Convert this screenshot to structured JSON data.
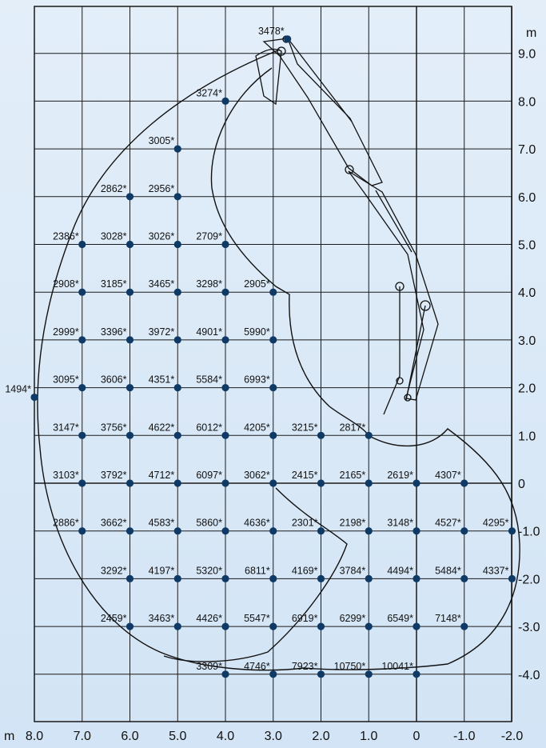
{
  "axes": {
    "x_unit": "m",
    "y_unit": "m",
    "x_ticks": [
      {
        "v": 8,
        "label": "8.0"
      },
      {
        "v": 7,
        "label": "7.0"
      },
      {
        "v": 6,
        "label": "6.0"
      },
      {
        "v": 5,
        "label": "5.0"
      },
      {
        "v": 4,
        "label": "4.0"
      },
      {
        "v": 3,
        "label": "3.0"
      },
      {
        "v": 2,
        "label": "2.0"
      },
      {
        "v": 1,
        "label": "1.0"
      },
      {
        "v": 0,
        "label": "0"
      },
      {
        "v": -1,
        "label": "-1.0"
      },
      {
        "v": -2,
        "label": "-2.0"
      }
    ],
    "y_ticks": [
      {
        "v": 9,
        "label": "9.0"
      },
      {
        "v": 8,
        "label": "8.0"
      },
      {
        "v": 7,
        "label": "7.0"
      },
      {
        "v": 6,
        "label": "6.0"
      },
      {
        "v": 5,
        "label": "5.0"
      },
      {
        "v": 4,
        "label": "4.0"
      },
      {
        "v": 3,
        "label": "3.0"
      },
      {
        "v": 2,
        "label": "2.0"
      },
      {
        "v": 1,
        "label": "1.0"
      },
      {
        "v": 0,
        "label": "0"
      },
      {
        "v": -1,
        "label": "-1.0"
      },
      {
        "v": -2,
        "label": "-2.0"
      },
      {
        "v": -3,
        "label": "-3.0"
      },
      {
        "v": -4,
        "label": "-4.0"
      }
    ]
  },
  "load_points": [
    {
      "x": 2.7,
      "y": 9.3,
      "label": "3478*"
    },
    {
      "x": 4,
      "y": 8,
      "label": "3274*"
    },
    {
      "x": 5,
      "y": 7,
      "label": "3005*"
    },
    {
      "x": 6,
      "y": 6,
      "label": "2862*"
    },
    {
      "x": 5,
      "y": 6,
      "label": "2956*"
    },
    {
      "x": 7,
      "y": 5,
      "label": "2386*"
    },
    {
      "x": 6,
      "y": 5,
      "label": "3028*"
    },
    {
      "x": 5,
      "y": 5,
      "label": "3026*"
    },
    {
      "x": 4,
      "y": 5,
      "label": "2709*"
    },
    {
      "x": 7,
      "y": 4,
      "label": "2908*"
    },
    {
      "x": 6,
      "y": 4,
      "label": "3185*"
    },
    {
      "x": 5,
      "y": 4,
      "label": "3465*"
    },
    {
      "x": 4,
      "y": 4,
      "label": "3298*"
    },
    {
      "x": 3,
      "y": 4,
      "label": "2905*"
    },
    {
      "x": 7,
      "y": 3,
      "label": "2999*"
    },
    {
      "x": 6,
      "y": 3,
      "label": "3396*"
    },
    {
      "x": 5,
      "y": 3,
      "label": "3972*"
    },
    {
      "x": 4,
      "y": 3,
      "label": "4901*"
    },
    {
      "x": 3,
      "y": 3,
      "label": "5990*"
    },
    {
      "x": 8,
      "y": 1.8,
      "label": "1494*"
    },
    {
      "x": 7,
      "y": 2,
      "label": "3095*"
    },
    {
      "x": 6,
      "y": 2,
      "label": "3606*"
    },
    {
      "x": 5,
      "y": 2,
      "label": "4351*"
    },
    {
      "x": 4,
      "y": 2,
      "label": "5584*"
    },
    {
      "x": 3,
      "y": 2,
      "label": "6993*"
    },
    {
      "x": 7,
      "y": 1,
      "label": "3147*"
    },
    {
      "x": 6,
      "y": 1,
      "label": "3756*"
    },
    {
      "x": 5,
      "y": 1,
      "label": "4622*"
    },
    {
      "x": 4,
      "y": 1,
      "label": "6012*"
    },
    {
      "x": 3,
      "y": 1,
      "label": "4205*"
    },
    {
      "x": 2,
      "y": 1,
      "label": "3215*"
    },
    {
      "x": 1,
      "y": 1,
      "label": "2817*"
    },
    {
      "x": 7,
      "y": 0,
      "label": "3103*"
    },
    {
      "x": 6,
      "y": 0,
      "label": "3792*"
    },
    {
      "x": 5,
      "y": 0,
      "label": "4712*"
    },
    {
      "x": 4,
      "y": 0,
      "label": "6097*"
    },
    {
      "x": 3,
      "y": 0,
      "label": "3062*"
    },
    {
      "x": 2,
      "y": 0,
      "label": "2415*"
    },
    {
      "x": 1,
      "y": 0,
      "label": "2165*"
    },
    {
      "x": 0,
      "y": 0,
      "label": "2619*"
    },
    {
      "x": -1,
      "y": 0,
      "label": "4307*"
    },
    {
      "x": 7,
      "y": -1,
      "label": "2886*"
    },
    {
      "x": 6,
      "y": -1,
      "label": "3662*"
    },
    {
      "x": 5,
      "y": -1,
      "label": "4583*"
    },
    {
      "x": 4,
      "y": -1,
      "label": "5860*"
    },
    {
      "x": 3,
      "y": -1,
      "label": "4636*"
    },
    {
      "x": 2,
      "y": -1,
      "label": "2301*"
    },
    {
      "x": 1,
      "y": -1,
      "label": "2198*"
    },
    {
      "x": 0,
      "y": -1,
      "label": "3148*"
    },
    {
      "x": -1,
      "y": -1,
      "label": "4527*"
    },
    {
      "x": -2,
      "y": -1,
      "label": "4295*"
    },
    {
      "x": 6,
      "y": -2,
      "label": "3292*"
    },
    {
      "x": 5,
      "y": -2,
      "label": "4197*"
    },
    {
      "x": 4,
      "y": -2,
      "label": "5320*"
    },
    {
      "x": 3,
      "y": -2,
      "label": "6811*"
    },
    {
      "x": 2,
      "y": -2,
      "label": "4169*"
    },
    {
      "x": 1,
      "y": -2,
      "label": "3784*"
    },
    {
      "x": 0,
      "y": -2,
      "label": "4494*"
    },
    {
      "x": -1,
      "y": -2,
      "label": "5484*"
    },
    {
      "x": -2,
      "y": -2,
      "label": "4337*"
    },
    {
      "x": 6,
      "y": -3,
      "label": "2459*"
    },
    {
      "x": 5,
      "y": -3,
      "label": "3463*"
    },
    {
      "x": 4,
      "y": -3,
      "label": "4426*"
    },
    {
      "x": 3,
      "y": -3,
      "label": "5547*"
    },
    {
      "x": 2,
      "y": -3,
      "label": "6919*"
    },
    {
      "x": 1,
      "y": -3,
      "label": "6299*"
    },
    {
      "x": 0,
      "y": -3,
      "label": "6549*"
    },
    {
      "x": -1,
      "y": -3,
      "label": "7148*"
    },
    {
      "x": 4,
      "y": -4,
      "label": "3309*"
    },
    {
      "x": 3,
      "y": -4,
      "label": "4746*"
    },
    {
      "x": 2,
      "y": -4,
      "label": "7923*"
    },
    {
      "x": 1,
      "y": -4,
      "label": "10750*"
    },
    {
      "x": 0,
      "y": -4,
      "label": "10041*"
    }
  ],
  "colors": {
    "grid": "#1a1a1a",
    "point": "#0f3a66",
    "curve": "#111111"
  }
}
